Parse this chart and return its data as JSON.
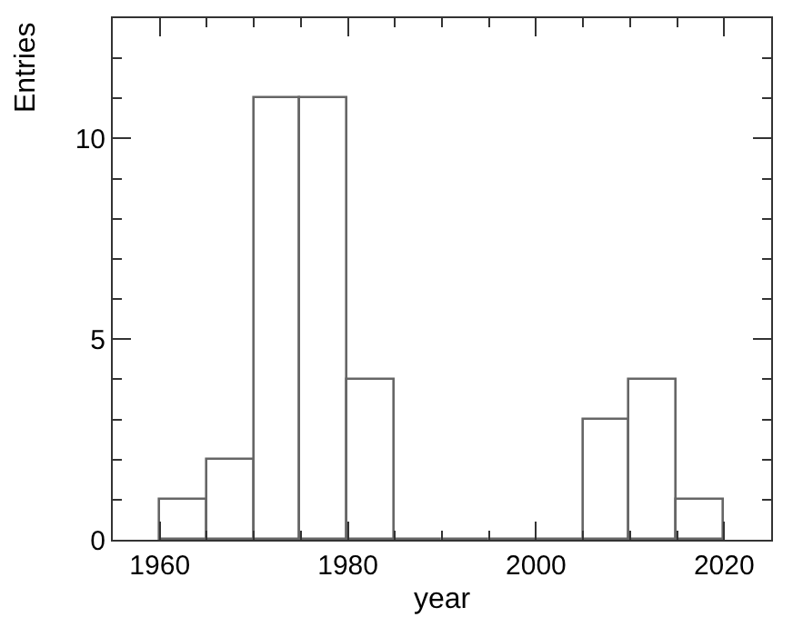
{
  "chart_data": {
    "type": "histogram",
    "xlabel": "year",
    "ylabel": "Entries",
    "bins": [
      1960,
      1965,
      1970,
      1975,
      1980,
      1985,
      1990,
      1995,
      2000,
      2005,
      2010,
      2015,
      2020
    ],
    "values": [
      1,
      2,
      11,
      11,
      4,
      0,
      0,
      0,
      0,
      3,
      4,
      1
    ],
    "color": "#666666",
    "xlim": [
      1955,
      2025
    ],
    "xticks": [
      {
        "value": 1955,
        "label": null
      },
      1960,
      {
        "value": 1965,
        "label": null
      },
      {
        "value": 1970,
        "label": null
      },
      {
        "value": 1975,
        "label": null
      },
      1980,
      {
        "value": 1985,
        "label": null
      },
      {
        "value": 1990,
        "label": null
      },
      {
        "value": 1995,
        "label": null
      },
      2000,
      {
        "value": 2005,
        "label": null
      },
      {
        "value": 2010,
        "label": null
      },
      {
        "value": 2015,
        "label": null
      },
      2020,
      {
        "value": 2025,
        "label": null
      }
    ],
    "ylim": [
      0,
      13
    ],
    "yticks": [
      0,
      {
        "value": 1,
        "label": null
      },
      {
        "value": 2,
        "label": null
      },
      {
        "value": 3,
        "label": null
      },
      {
        "value": 4,
        "label": null
      },
      5,
      {
        "value": 6,
        "label": null
      },
      {
        "value": 7,
        "label": null
      },
      {
        "value": 8,
        "label": null
      },
      {
        "value": 9,
        "label": null
      },
      10,
      {
        "value": 11,
        "label": null
      },
      {
        "value": 12,
        "label": null
      },
      {
        "value": 13,
        "label": null
      }
    ],
    "legend": false
  }
}
